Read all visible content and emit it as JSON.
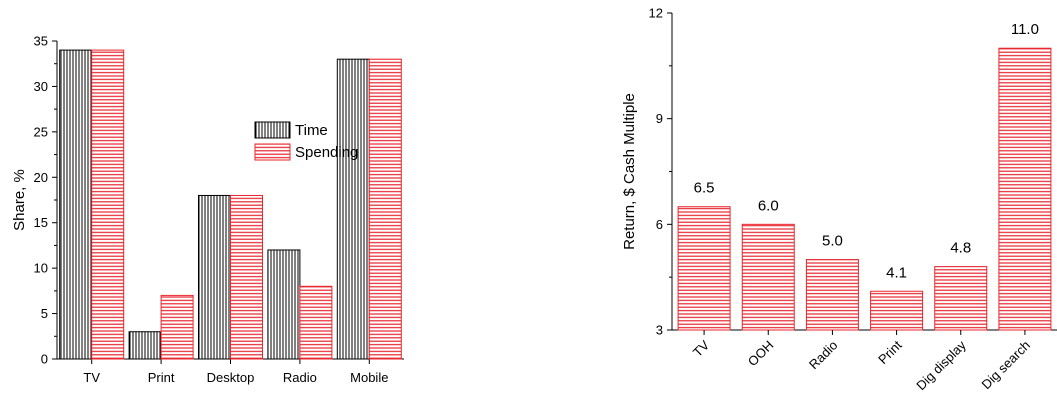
{
  "chart_data": [
    {
      "type": "bar",
      "categories": [
        "TV",
        "Print",
        "Desktop",
        "Radio",
        "Mobile"
      ],
      "series": [
        {
          "name": "Time",
          "values": [
            34,
            3,
            18,
            12,
            33
          ],
          "color": "#000000",
          "pattern": "vertical-lines"
        },
        {
          "name": "Spending",
          "values": [
            34,
            7,
            18,
            8,
            33
          ],
          "color": "#e8262e",
          "pattern": "horizontal-lines"
        }
      ],
      "xlabel": "",
      "ylabel": "Share, %",
      "ylim": [
        0,
        35
      ],
      "yticks": [
        0,
        5,
        10,
        15,
        20,
        25,
        30,
        35
      ],
      "legend": "center-right",
      "grid": false
    },
    {
      "type": "bar",
      "categories": [
        "TV",
        "OOH",
        "Radio",
        "Print",
        "Dig display",
        "Dig search"
      ],
      "values": [
        6.5,
        6.0,
        5.0,
        4.1,
        4.8,
        11.0
      ],
      "data_labels": [
        "6.5",
        "6.0",
        "5.0",
        "4.1",
        "4.8",
        "11.0"
      ],
      "color": "#e8262e",
      "pattern": "horizontal-lines",
      "xlabel": "",
      "ylabel": "Return, $ Cash Multiple",
      "ylim": [
        3,
        12
      ],
      "yticks": [
        3,
        6,
        9,
        12
      ],
      "xtick_rotation": -45,
      "grid": false
    }
  ]
}
